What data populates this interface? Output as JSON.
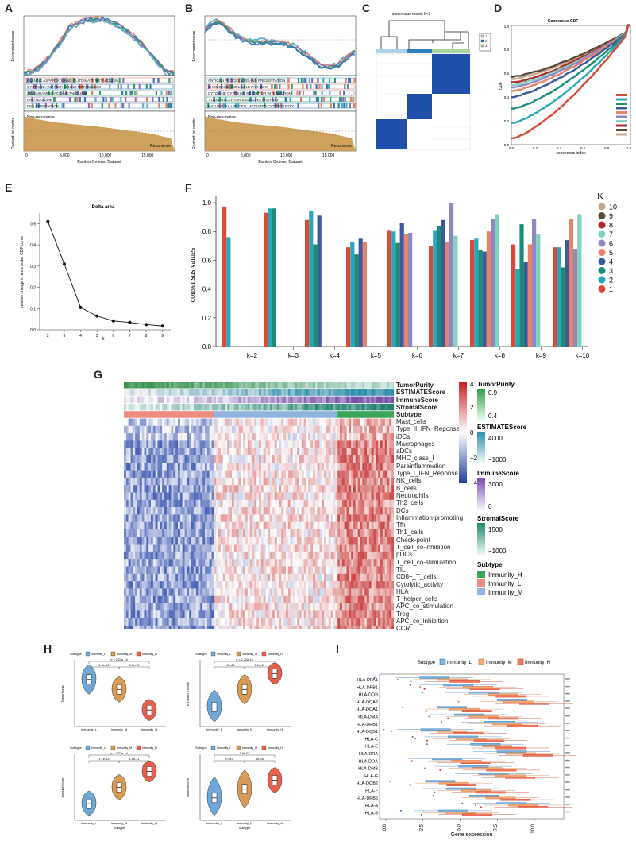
{
  "panels": {
    "A": {
      "letter": "A",
      "ylabel_top": "Enrichment score",
      "ylabel_bottom": "Ranked list metric",
      "xlabel": "Rank in Ordered Dataset",
      "xticks": [
        "0",
        "5,000",
        "10,000",
        "15,000"
      ],
      "label_top": "Non-recurrence",
      "label_bottom": "Recurrence",
      "pathways": [
        "ALANINE ASPARTATE AND GLUTAMATE METABOLISM",
        "CYSTEINE AND METHIONINE METABOLISM",
        "SELENOAMINO ACID METABOLISM",
        "PROTEASOME",
        "DNA REPLICATION"
      ],
      "colors": [
        "#e8826a",
        "#3a7bbf",
        "#2e9e6a",
        "#8a6fb5",
        "#6ab0c0"
      ]
    },
    "B": {
      "letter": "B",
      "ylabel_top": "Enrichment score",
      "ylabel_bottom": "Ranked list metric",
      "xlabel": "Rank in Ordered Dataset",
      "xticks": [
        "0",
        "5,000",
        "10,000",
        "15,000"
      ],
      "label_top": "Non-recurrence",
      "label_bottom": "Recurrence",
      "pathways": [
        "ANTIGEN PROCESSING AND PRESENTATION",
        "CHEMOKINE SIGNALING PATHWAY",
        "CYTOKINE CYTOKINE RECEPTOR INTERACTION",
        "T CELL RECEPTOR SIGNALING PATHWAY",
        "NATURAL KILLER CELL MEDIATED CYTOTOXICITY"
      ],
      "colors": [
        "#4ab0c8",
        "#e8826a",
        "#8a6fb5",
        "#2e9e6a",
        "#3a7bbf"
      ]
    },
    "C": {
      "letter": "C",
      "title": "consensus matrix k=3",
      "legend": [
        "1",
        "2",
        "3"
      ]
    },
    "D": {
      "letter": "D",
      "title": "Consensus CDF",
      "xlabel": "consensus index",
      "ylabel": "CDF",
      "xticks": [
        "0.0",
        "0.2",
        "0.4",
        "0.6",
        "0.8",
        "1.0"
      ],
      "yticks": [
        "0.0",
        "0.2",
        "0.4",
        "0.6",
        "0.8",
        "1.0"
      ]
    },
    "E": {
      "letter": "E",
      "title": "Delta area",
      "xlabel": "k",
      "ylabel": "relative change in area under CDF curve"
    },
    "F": {
      "letter": "F",
      "ylabel": "consensus values",
      "legend_title": "K"
    },
    "G": {
      "letter": "G"
    },
    "H": {
      "letter": "H"
    },
    "I": {
      "letter": "I",
      "xlabel": "Gene expression",
      "legend_title": "Subtype"
    }
  },
  "chart_data": [
    {
      "id": "E",
      "type": "line",
      "title": "Delta area",
      "xlabel": "k",
      "ylabel": "relative change in area under CDF curve",
      "x": [
        2,
        3,
        4,
        5,
        6,
        7,
        8,
        9
      ],
      "y": [
        0.51,
        0.31,
        0.105,
        0.065,
        0.042,
        0.035,
        0.025,
        0.018
      ],
      "ylim": [
        0,
        0.55
      ],
      "yticks": [
        0,
        0.1,
        0.2,
        0.3,
        0.4,
        0.5
      ]
    },
    {
      "id": "F",
      "type": "bar",
      "ylabel": "consensus values",
      "ylim": [
        0,
        1.05
      ],
      "yticks": [
        "0.0",
        "0.2",
        "0.4",
        "0.6",
        "0.8",
        "1.0"
      ],
      "categories": [
        "k=2",
        "k=3",
        "k=4",
        "k=5",
        "k=6",
        "k=7",
        "k=8",
        "k=9",
        "k=10"
      ],
      "series": [
        {
          "name": "1",
          "color": "#d94a3a",
          "values": [
            0.97,
            0.93,
            0.88,
            0.69,
            0.81,
            0.7,
            0.74,
            0.71,
            0.69
          ]
        },
        {
          "name": "2",
          "color": "#2aa7b8",
          "values": [
            0.76,
            0.96,
            0.94,
            0.73,
            0.8,
            0.81,
            0.75,
            0.54,
            0.69
          ]
        },
        {
          "name": "3",
          "color": "#1d8a7a",
          "values": [
            null,
            0.96,
            0.71,
            0.64,
            0.72,
            0.84,
            0.67,
            0.85,
            0.55
          ]
        },
        {
          "name": "4",
          "color": "#3a5a9a",
          "values": [
            null,
            null,
            0.91,
            0.75,
            0.86,
            0.88,
            0.66,
            0.59,
            0.74
          ]
        },
        {
          "name": "5",
          "color": "#e8826a",
          "values": [
            null,
            null,
            null,
            0.73,
            0.78,
            0.73,
            0.8,
            0.71,
            0.89
          ]
        },
        {
          "name": "6",
          "color": "#8f88c2",
          "values": [
            null,
            null,
            null,
            null,
            0.79,
            1.0,
            0.89,
            0.89,
            0.68
          ]
        },
        {
          "name": "7",
          "color": "#7fd3c0",
          "values": [
            null,
            null,
            null,
            null,
            null,
            0.77,
            0.92,
            0.78,
            0.92
          ]
        },
        {
          "name": "8",
          "color": "#b02a2a",
          "values": [
            null,
            null,
            null,
            null,
            null,
            null,
            null,
            null,
            null
          ]
        },
        {
          "name": "9",
          "color": "#5a4a3a",
          "values": [
            null,
            null,
            null,
            null,
            null,
            null,
            null,
            null,
            null
          ]
        },
        {
          "name": "10",
          "color": "#c8a890",
          "values": [
            null,
            null,
            null,
            null,
            null,
            null,
            null,
            null,
            null
          ]
        }
      ]
    },
    {
      "id": "H",
      "type": "violin",
      "panels": [
        {
          "ylabel": "TumorPurity",
          "pvals": [
            "p < 2.22e-16",
            "1.3e-06",
            "5.3e-12"
          ],
          "groups": [
            "Immunity_L",
            "Immunity_M",
            "Immunity_H"
          ]
        },
        {
          "ylabel": "ESTIMATEScore",
          "pvals": [
            "p < 2.22e-16",
            "1.3e-06",
            "5.1e-11"
          ],
          "groups": [
            "Immunity_L",
            "Immunity_M",
            "Immunity_H"
          ]
        },
        {
          "ylabel": "ImmuneScore",
          "pvals": [
            "p < 2.22e-16",
            "1.1e-13",
            "1.5e-11"
          ],
          "groups": [
            "Immunity_L",
            "Immunity_M",
            "Immunity_H"
          ]
        },
        {
          "ylabel": "StromalScore",
          "pvals": [
            "7.9e-07",
            "0.013",
            "1e-05"
          ],
          "groups": [
            "Immunity_L",
            "Immunity_M",
            "Immunity_H"
          ]
        }
      ]
    }
  ],
  "heatmap": {
    "annotations": [
      "TumorPurity",
      "ESTIMATEScore",
      "ImmuneScore",
      "StromalScore",
      "Subtype"
    ],
    "rows": [
      "Mast_cells",
      "Type_II_IFN_Reponse",
      "iDCs",
      "Macrophages",
      "aDCs",
      "MHC_class_I",
      "Parainflammation",
      "Type_I_IFN_Reponse",
      "NK_cells",
      "B_cells",
      "Neutrophils",
      "Th2_cells",
      "DCs",
      "Inflammation-promoting",
      "Tfh",
      "Th1_cells",
      "Check-point",
      "T_cell_co-inhibition",
      "pDCs",
      "T_cell_co-stimulation",
      "TIL",
      "CD8+_T_cells",
      "Cytolytic_activity",
      "HLA",
      "T_helper_cells",
      "APC_co_stimulation",
      "Treg",
      "APC_co_inhibition",
      "CCR"
    ],
    "scale_ticks": [
      "4",
      "2",
      "0",
      "−2",
      "−4"
    ],
    "legends": [
      {
        "title": "TumorPurity",
        "ticks": [
          "0.9",
          "0.4"
        ]
      },
      {
        "title": "ESTIMATEScore",
        "ticks": [
          "4000",
          "−1000"
        ]
      },
      {
        "title": "ImmuneScore",
        "ticks": [
          "3000",
          "0"
        ]
      },
      {
        "title": "StromalScore",
        "ticks": [
          "1500",
          "−1000"
        ]
      },
      {
        "title": "Subtype",
        "items": [
          "Immunity_H",
          "Immunity_L",
          "Immunity_M"
        ]
      }
    ]
  },
  "H_legend": {
    "title": "Subtype",
    "items": [
      "Immunity_L",
      "Immunity_M",
      "Immunity_H"
    ],
    "xlabel": "Subtype"
  },
  "I_data": {
    "genes": [
      "HLA-DPA1",
      "HLA-DPB1",
      "HLA-DOB",
      "HLA-DQA2",
      "HLA-DQA1",
      "HLA-DMA",
      "HLA-DRB1",
      "HLA-DQB1",
      "HLA-C",
      "HLA-E",
      "HLA-DRA",
      "HLA-DOA",
      "HLA-DMB",
      "HLA-G",
      "HLA-DQB2",
      "HLA-F",
      "HLA-DRB5",
      "HLA-A",
      "HLA-B"
    ],
    "sig": "***",
    "xticks": [
      "0.0",
      "2.5",
      "5.0",
      "7.5",
      "10.0"
    ],
    "legend": [
      "Immunity_L",
      "Immunity_M",
      "Immunity_H"
    ]
  }
}
